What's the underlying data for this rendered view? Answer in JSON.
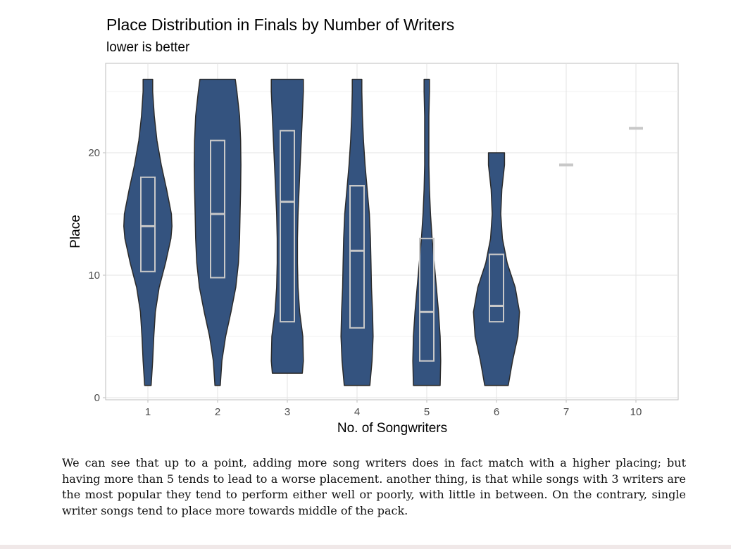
{
  "chart_data": {
    "type": "violin",
    "title": "Place Distribution in Finals by Number of Writers",
    "subtitle": "lower is better",
    "xlabel": "No. of Songwriters",
    "ylabel": "Place",
    "categories": [
      "1",
      "2",
      "3",
      "4",
      "5",
      "6",
      "7",
      "10"
    ],
    "y_ticks": [
      "0",
      "10",
      "20"
    ],
    "ylim": [
      0,
      26.2
    ],
    "grid": true,
    "legend": "none",
    "fill_color": "#34537f",
    "box_color": "#c8c8c8",
    "groups": [
      {
        "category": "1",
        "min": 1,
        "max": 26,
        "q1": 10.3,
        "median": 14,
        "q3": 18,
        "density": [
          [
            1,
            0.12
          ],
          [
            3,
            0.18
          ],
          [
            5,
            0.22
          ],
          [
            7,
            0.28
          ],
          [
            9,
            0.42
          ],
          [
            11,
            0.66
          ],
          [
            13,
            0.86
          ],
          [
            14,
            0.9
          ],
          [
            15,
            0.88
          ],
          [
            17,
            0.7
          ],
          [
            19,
            0.5
          ],
          [
            21,
            0.34
          ],
          [
            23,
            0.24
          ],
          [
            25,
            0.18
          ],
          [
            26,
            0.18
          ]
        ]
      },
      {
        "category": "2",
        "min": 1,
        "max": 26,
        "q1": 9.8,
        "median": 15,
        "q3": 21,
        "density": [
          [
            1,
            0.1
          ],
          [
            3,
            0.16
          ],
          [
            5,
            0.3
          ],
          [
            7,
            0.5
          ],
          [
            9,
            0.68
          ],
          [
            11,
            0.78
          ],
          [
            13,
            0.82
          ],
          [
            15,
            0.84
          ],
          [
            17,
            0.86
          ],
          [
            19,
            0.87
          ],
          [
            21,
            0.86
          ],
          [
            23,
            0.82
          ],
          [
            25,
            0.72
          ],
          [
            26,
            0.66
          ]
        ]
      },
      {
        "category": "3",
        "min": 2,
        "max": 26,
        "q1": 6.2,
        "median": 16,
        "q3": 21.8,
        "density": [
          [
            2,
            0.56
          ],
          [
            3,
            0.6
          ],
          [
            5,
            0.58
          ],
          [
            7,
            0.46
          ],
          [
            9,
            0.4
          ],
          [
            11,
            0.38
          ],
          [
            13,
            0.38
          ],
          [
            15,
            0.4
          ],
          [
            17,
            0.44
          ],
          [
            19,
            0.48
          ],
          [
            21,
            0.52
          ],
          [
            23,
            0.56
          ],
          [
            25,
            0.6
          ],
          [
            26,
            0.6
          ]
        ]
      },
      {
        "category": "4",
        "min": 1,
        "max": 26,
        "q1": 5.7,
        "median": 12,
        "q3": 17.3,
        "density": [
          [
            1,
            0.48
          ],
          [
            3,
            0.56
          ],
          [
            5,
            0.6
          ],
          [
            7,
            0.58
          ],
          [
            9,
            0.54
          ],
          [
            11,
            0.52
          ],
          [
            13,
            0.5
          ],
          [
            15,
            0.46
          ],
          [
            17,
            0.38
          ],
          [
            19,
            0.3
          ],
          [
            21,
            0.24
          ],
          [
            23,
            0.2
          ],
          [
            25,
            0.18
          ],
          [
            26,
            0.18
          ]
        ]
      },
      {
        "category": "5",
        "min": 1,
        "max": 26,
        "q1": 3,
        "median": 7,
        "q3": 13,
        "density": [
          [
            1,
            0.5
          ],
          [
            3,
            0.52
          ],
          [
            5,
            0.5
          ],
          [
            7,
            0.44
          ],
          [
            9,
            0.36
          ],
          [
            11,
            0.28
          ],
          [
            13,
            0.2
          ],
          [
            15,
            0.14
          ],
          [
            17,
            0.1
          ],
          [
            19,
            0.08
          ],
          [
            21,
            0.08
          ],
          [
            23,
            0.08
          ],
          [
            25,
            0.1
          ],
          [
            26,
            0.1
          ]
        ]
      },
      {
        "category": "6",
        "min": 1,
        "max": 20,
        "q1": 6.2,
        "median": 7.5,
        "q3": 11.7,
        "density": [
          [
            1,
            0.44
          ],
          [
            3,
            0.6
          ],
          [
            5,
            0.8
          ],
          [
            7,
            0.86
          ],
          [
            9,
            0.7
          ],
          [
            11,
            0.4
          ],
          [
            13,
            0.22
          ],
          [
            15,
            0.16
          ],
          [
            17,
            0.2
          ],
          [
            19,
            0.3
          ],
          [
            20,
            0.3
          ]
        ]
      },
      {
        "category": "7",
        "min": 19,
        "max": 19,
        "median": 19,
        "density": []
      },
      {
        "category": "10",
        "min": 22,
        "max": 22,
        "median": 22,
        "density": []
      }
    ]
  },
  "caption": "We can see that up to a point, adding more song writers does in fact match with a higher placing; but having more than 5 tends to lead to a worse placement. another thing, is that while songs with 3 writers are the most popular they tend to perform either well or poorly, with little in between. On the contrary, single writer songs tend to place more towards middle of the pack."
}
